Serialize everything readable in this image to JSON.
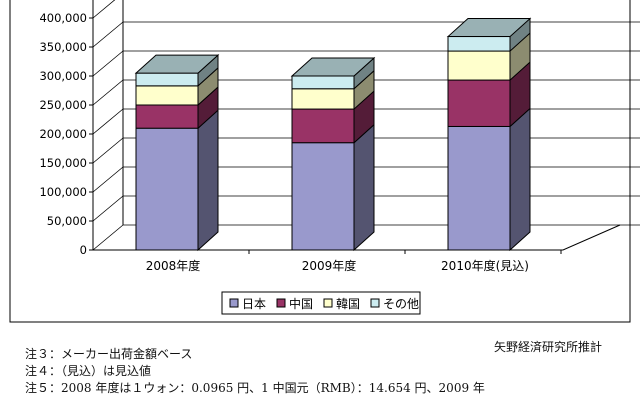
{
  "chart_data": {
    "type": "bar",
    "stacked": true,
    "three_d": true,
    "categories": [
      "2008年度",
      "2009年度",
      "2010年度(見込)"
    ],
    "series": [
      {
        "name": "日本",
        "values": [
          210000,
          185000,
          213000
        ],
        "color": "#9999cc"
      },
      {
        "name": "中国",
        "values": [
          40000,
          58000,
          80000
        ],
        "color": "#993366"
      },
      {
        "name": "韓国",
        "values": [
          33000,
          35000,
          50000
        ],
        "color": "#ffffcc"
      },
      {
        "name": "その他",
        "values": [
          22000,
          22000,
          25000
        ],
        "color": "#ccecf0"
      }
    ],
    "ylim": [
      0,
      400000
    ],
    "yticks": [
      "0",
      "50,000",
      "100,000",
      "150,000",
      "200,000",
      "250,000",
      "300,000",
      "350,000",
      "400,000"
    ],
    "grid": true,
    "legend_position": "bottom"
  },
  "source": "矢野経済研究所推計",
  "notes": [
    "注３：メーカー出荷金額ベース",
    "注４：（見込）は見込値",
    "注５：2008 年度は１ウォン：0.0965 円、1 中国元（RMB）：14.654 円、2009 年"
  ]
}
